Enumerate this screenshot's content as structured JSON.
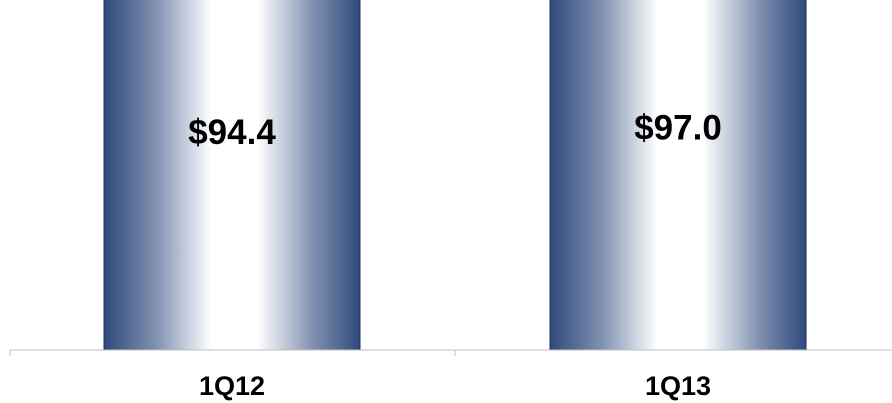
{
  "chart_data": {
    "type": "bar",
    "categories": [
      "1Q12",
      "1Q13"
    ],
    "values": [
      94.4,
      97.0
    ],
    "data_labels": [
      "$94.4",
      "$97.0"
    ],
    "title": "",
    "xlabel": "",
    "ylabel": "",
    "grid": false,
    "legend": "none",
    "colors": {
      "bar_edge": "#2f4a7c",
      "bar_mid": "#7f8fb0",
      "bar_highlight": "#ffffff",
      "axis": "#bfbfbf"
    }
  }
}
